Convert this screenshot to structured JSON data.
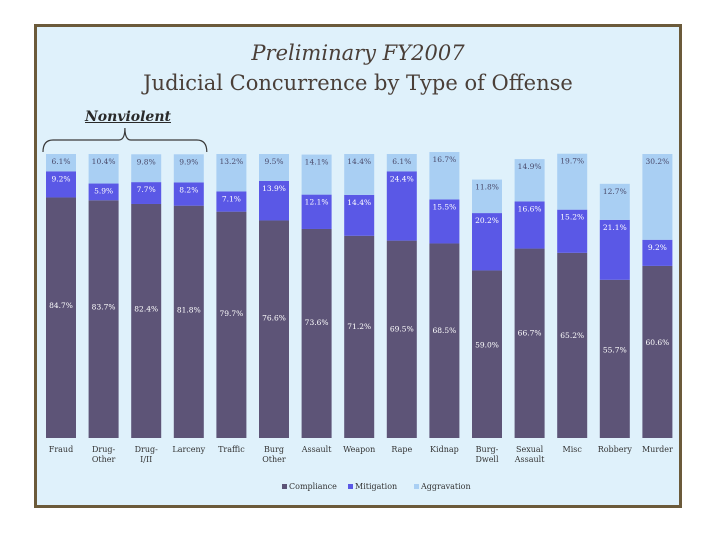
{
  "title": "Preliminary FY2007",
  "subtitle": "Judicial Concurrence by Type of Offense",
  "group_label": "Nonviolent",
  "colors": {
    "frame_border": "#6b5a3a",
    "background": "#dff1fb",
    "compliance": "#5d5477",
    "mitigation": "#5a58e6",
    "aggravation": "#a9cff3"
  },
  "chart_data": {
    "type": "bar",
    "stacked": true,
    "normalized_percent": true,
    "categories": [
      "Fraud",
      "Drug-Other",
      "Drug-I/II",
      "Larceny",
      "Traffic",
      "Burg Other",
      "Assault",
      "Weapon",
      "Rape",
      "Kidnap",
      "Burg-Dwell",
      "Sexual Assault",
      "Misc",
      "Robbery",
      "Murder"
    ],
    "series": [
      {
        "name": "Compliance",
        "values": [
          84.7,
          83.7,
          82.4,
          81.8,
          79.7,
          76.6,
          73.6,
          71.2,
          69.5,
          68.5,
          59.0,
          66.7,
          65.2,
          55.7,
          60.6
        ],
        "labels": [
          "84.7%",
          "83.7%",
          "82.4%",
          "81.8%",
          "79.7%",
          "76.6%",
          "73.6%",
          "71.2%",
          "69.5%",
          "68.5%",
          "59.0%",
          "66.7%",
          "65.2%",
          "55.7%",
          "60.6%"
        ]
      },
      {
        "name": "Mitigation",
        "values": [
          9.2,
          5.9,
          7.7,
          8.2,
          7.1,
          13.9,
          12.1,
          14.4,
          24.4,
          15.5,
          20.2,
          16.6,
          15.2,
          21.1,
          9.2
        ],
        "labels": [
          "9.2%",
          "5.9%",
          "7.7%",
          "8.2%",
          "7.1%",
          "13.9%",
          "12.1%",
          "14.4%",
          "24.4%",
          "15.5%",
          "20.2%",
          "16.6%",
          "15.2%",
          "21.1%",
          "9.2%"
        ]
      },
      {
        "name": "Aggravation",
        "values": [
          6.1,
          10.4,
          9.8,
          9.9,
          13.2,
          9.5,
          14.1,
          14.4,
          6.1,
          16.7,
          11.8,
          14.9,
          19.7,
          12.7,
          30.2
        ],
        "labels": [
          "6.1%",
          "10.4%",
          "9.8%",
          "9.9%",
          "13.2%",
          "9.5%",
          "14.1%",
          "14.4%",
          "6.1%",
          "16.7%",
          "11.8%",
          "14.9%",
          "19.7%",
          "12.7%",
          "30.2%"
        ]
      }
    ],
    "ylim": [
      0,
      100
    ],
    "grid": false,
    "legend_position": "bottom"
  }
}
